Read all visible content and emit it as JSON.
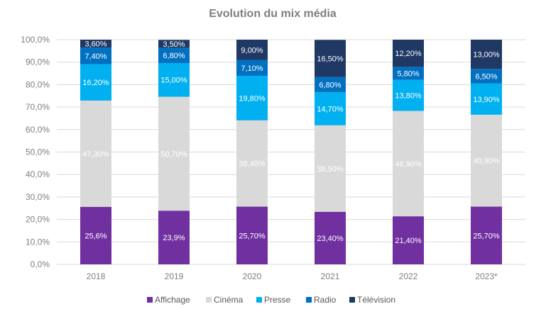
{
  "colors": {
    "Affichage": "#7030a0",
    "Cinéma": "#d9d9d9",
    "Presse": "#00b0f0",
    "Radio": "#0070c0",
    "Télévision": "#1f3864",
    "title": "#7f7f7f",
    "axis_text": "#7f7f7f",
    "grid": "#d9d9d9"
  },
  "chart_data": {
    "type": "bar",
    "stacked": true,
    "title": "Evolution du mix média",
    "xlabel": "",
    "ylabel": "",
    "ylim": [
      0,
      100
    ],
    "yticks": [
      "0,0%",
      "10,0%",
      "20,0%",
      "30,0%",
      "40,0%",
      "50,0%",
      "60,0%",
      "70,0%",
      "80,0%",
      "90,0%",
      "100,0%"
    ],
    "categories": [
      "2018",
      "2019",
      "2020",
      "2021",
      "2022",
      "2023*"
    ],
    "grid": true,
    "legend_position": "bottom",
    "series": [
      {
        "name": "Affichage",
        "values": [
          25.6,
          23.9,
          25.7,
          23.4,
          21.4,
          25.7
        ],
        "labels": [
          "25,6%",
          "23,9%",
          "25,70%",
          "23,40%",
          "21,40%",
          "25,70%"
        ]
      },
      {
        "name": "Cinéma",
        "values": [
          47.3,
          50.7,
          38.4,
          38.5,
          46.9,
          40.9
        ],
        "labels": [
          "47,30%",
          "50,70%",
          "38,40%",
          "38,50%",
          "46,90%",
          "40,90%"
        ]
      },
      {
        "name": "Presse",
        "values": [
          16.2,
          15.0,
          19.8,
          14.7,
          13.8,
          13.9
        ],
        "labels": [
          "16,20%",
          "15,00%",
          "19,80%",
          "14,70%",
          "13,80%",
          "13,90%"
        ]
      },
      {
        "name": "Radio",
        "values": [
          7.4,
          6.8,
          7.1,
          6.8,
          5.8,
          6.5
        ],
        "labels": [
          "7,40%",
          "6,80%",
          "7,10%",
          "6,80%",
          "5,80%",
          "6,50%"
        ]
      },
      {
        "name": "Télévision",
        "values": [
          3.6,
          3.5,
          9.0,
          16.5,
          12.2,
          13.0
        ],
        "labels": [
          "3,60%",
          "3,50%",
          "9,00%",
          "16,50%",
          "12,20%",
          "13,00%"
        ]
      }
    ]
  }
}
